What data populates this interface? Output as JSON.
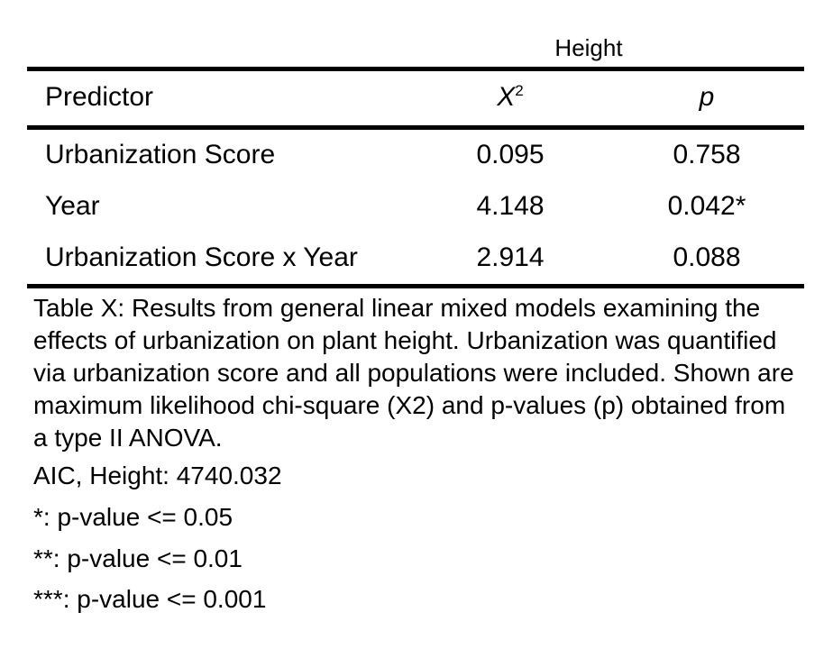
{
  "table": {
    "group_header": "Height",
    "columns": {
      "predictor": "Predictor",
      "chi_square": "X",
      "chi_square_superscript": "2",
      "p_value": "p"
    },
    "rows": [
      {
        "predictor": "Urbanization Score",
        "chi_square": "0.095",
        "p_value": "0.758"
      },
      {
        "predictor": "Year",
        "chi_square": "4.148",
        "p_value": "0.042*"
      },
      {
        "predictor": "Urbanization Score x Year",
        "chi_square": "2.914",
        "p_value": "0.088"
      }
    ]
  },
  "caption": "Table X: Results from general linear mixed models examining the effects of urbanization on plant height. Urbanization was quantified via urbanization score and all populations were included. Shown are maximum likelihood chi-square (X2) and p-values (p) obtained from a type II ANOVA.",
  "notes": {
    "aic": "AIC, Height: 4740.032",
    "sig_1": "*: p-value <= 0.05",
    "sig_2": "**: p-value <= 0.01",
    "sig_3": "***: p-value <= 0.001"
  }
}
